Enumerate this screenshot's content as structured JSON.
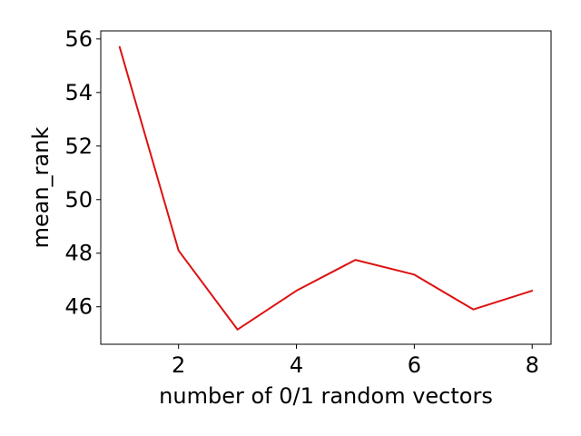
{
  "chart_data": {
    "type": "line",
    "title": "",
    "xlabel": "number of 0/1 random vectors",
    "ylabel": "mean_rank",
    "xlim": [
      0.68,
      8.32
    ],
    "ylim": [
      44.6,
      56.3
    ],
    "xticks": [
      2,
      4,
      6,
      8
    ],
    "yticks": [
      46,
      48,
      50,
      52,
      54,
      56
    ],
    "grid": false,
    "legend": "none",
    "series": [
      {
        "color": "#dd1111",
        "x": [
          1,
          2,
          3,
          4,
          5,
          6,
          7,
          8
        ],
        "y": [
          55.7,
          48.1,
          45.15,
          46.6,
          47.75,
          47.2,
          45.9,
          46.6
        ]
      }
    ]
  }
}
